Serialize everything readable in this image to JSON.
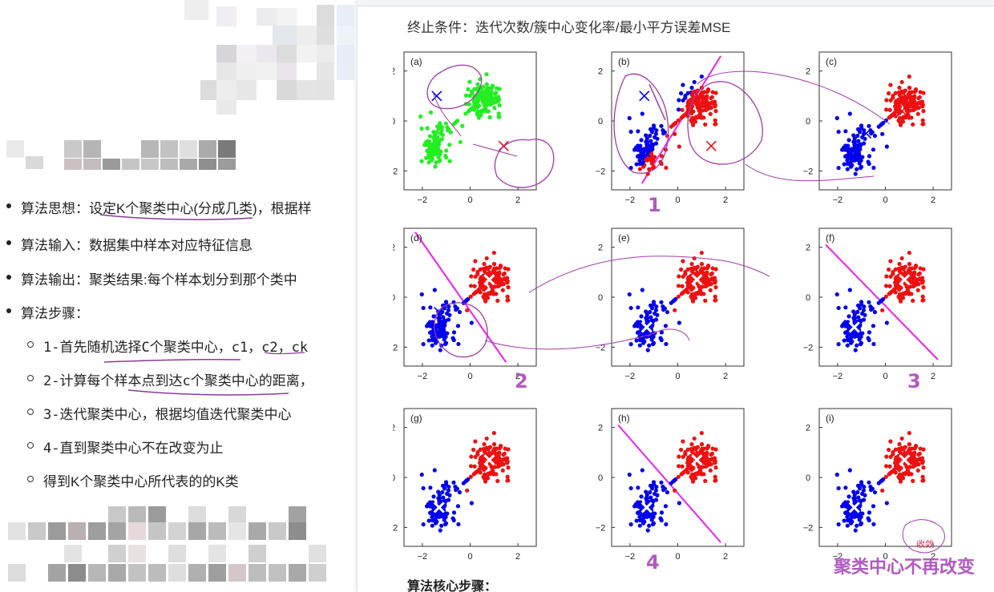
{
  "left": {
    "bullets": [
      {
        "label": "算法思想：",
        "text": "设定K个聚类中心(分成几类)，根据样"
      },
      {
        "label": "算法输入：",
        "text": "数据集中样本对应特征信息"
      },
      {
        "label": "算法输出：",
        "text": "聚类结果:每个样本划分到那个类中"
      },
      {
        "label": "算法步骤：",
        "text": ""
      }
    ],
    "steps": [
      "1-首先随机选择C个聚类中心，c1，c2，ck",
      "2-计算每个样本点到达c个聚类中心的距离，",
      "3-迭代聚类中心，根据均值迭代聚类中心",
      "4-直到聚类中心不在改变为止",
      "得到K个聚类中心所代表的的K类"
    ]
  },
  "right": {
    "heading": "终止条件：迭代次数/簇中心变化率/最小平方误差MSE",
    "footer_partial": "算法核心步骤：",
    "annotations": {
      "n1": "1",
      "n2": "2",
      "n3": "3",
      "n4": "4",
      "converge_small": "收敛",
      "converge_caption": "聚类中心不再改变"
    },
    "panels": [
      {
        "label": "(a)"
      },
      {
        "label": "(b)"
      },
      {
        "label": "(c)"
      },
      {
        "label": "(d)"
      },
      {
        "label": "(e)"
      },
      {
        "label": "(f)"
      },
      {
        "label": "(g)"
      },
      {
        "label": "(h)"
      },
      {
        "label": "(i)"
      }
    ],
    "axis_ticks": {
      "x": [
        "−2",
        "0",
        "2"
      ],
      "y": [
        "2",
        "0",
        "−2"
      ]
    }
  },
  "colors": {
    "blue": "#0000ee",
    "red": "#ee1111",
    "green": "#22ee22",
    "magenta": "#ee22ee",
    "ink": "#a03aa8"
  }
}
